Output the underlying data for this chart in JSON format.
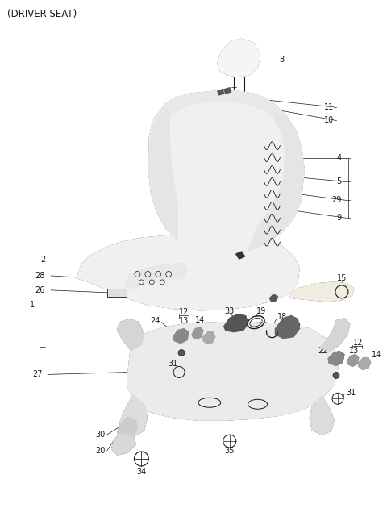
{
  "title": "(DRIVER SEAT)",
  "bg": "#ffffff",
  "lc": "#1a1a1a",
  "fs_title": 8.5,
  "fs_label": 7.0,
  "fig_w": 4.8,
  "fig_h": 6.56,
  "dpi": 100
}
